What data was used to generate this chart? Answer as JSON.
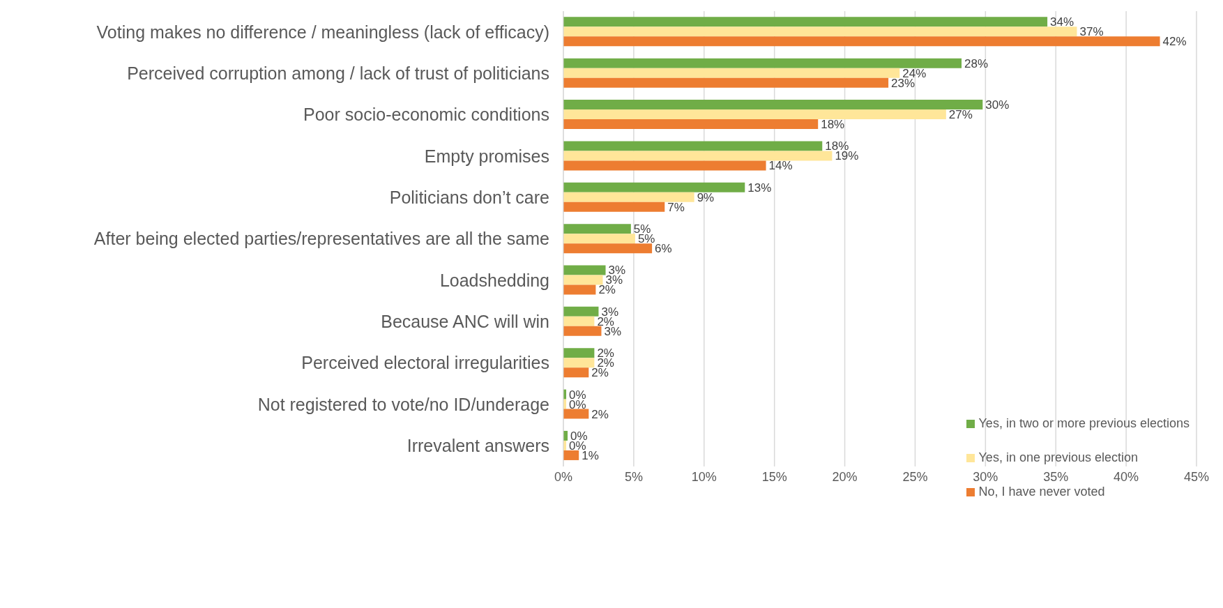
{
  "chart_data": {
    "type": "bar",
    "orientation": "horizontal",
    "categories": [
      "Voting makes no difference / meaningless (lack of efficacy)",
      "Perceived corruption among / lack of trust of politicians",
      "Poor socio-economic conditions",
      "Empty promises",
      "Politicians don’t care",
      "After being elected parties/representatives are all the same",
      "Loadshedding",
      "Because ANC will win",
      "Perceived electoral irregularities",
      "Not registered to vote/no ID/underage",
      "Irrevalent answers"
    ],
    "series": [
      {
        "name": "Yes, in two or more previous elections",
        "color": "#70ad47",
        "values": [
          34.4,
          28.3,
          29.8,
          18.4,
          12.9,
          4.8,
          3.0,
          2.5,
          2.2,
          0.2,
          0.3
        ],
        "value_labels": [
          "34%",
          "28%",
          "30%",
          "18%",
          "13%",
          "5%",
          "3%",
          "3%",
          "2%",
          "0%",
          "0%"
        ]
      },
      {
        "name": "Yes, in one previous election",
        "color": "#ffe699",
        "values": [
          36.5,
          23.9,
          27.2,
          19.1,
          9.3,
          5.1,
          2.8,
          2.2,
          2.2,
          0.2,
          0.2
        ],
        "value_labels": [
          "37%",
          "24%",
          "27%",
          "19%",
          "9%",
          "5%",
          "3%",
          "2%",
          "2%",
          "0%",
          "0%"
        ]
      },
      {
        "name": "No, I have never voted",
        "color": "#ed7d31",
        "values": [
          42.4,
          23.1,
          18.1,
          14.4,
          7.2,
          6.3,
          2.3,
          2.7,
          1.8,
          1.8,
          1.1
        ],
        "value_labels": [
          "42%",
          "23%",
          "18%",
          "14%",
          "7%",
          "6%",
          "2%",
          "3%",
          "2%",
          "2%",
          "1%"
        ]
      }
    ],
    "xlim": [
      0,
      45
    ],
    "xticks": [
      {
        "value": 0,
        "label": "0%"
      },
      {
        "value": 5,
        "label": "5%"
      },
      {
        "value": 10,
        "label": "10%"
      },
      {
        "value": 15,
        "label": "15%"
      },
      {
        "value": 20,
        "label": "20%"
      },
      {
        "value": 25,
        "label": "25%"
      },
      {
        "value": 30,
        "label": "30%"
      },
      {
        "value": 35,
        "label": "35%"
      },
      {
        "value": 40,
        "label": "40%"
      },
      {
        "value": 45,
        "label": "45%"
      }
    ],
    "grid": "x",
    "legend": "bottom right"
  }
}
